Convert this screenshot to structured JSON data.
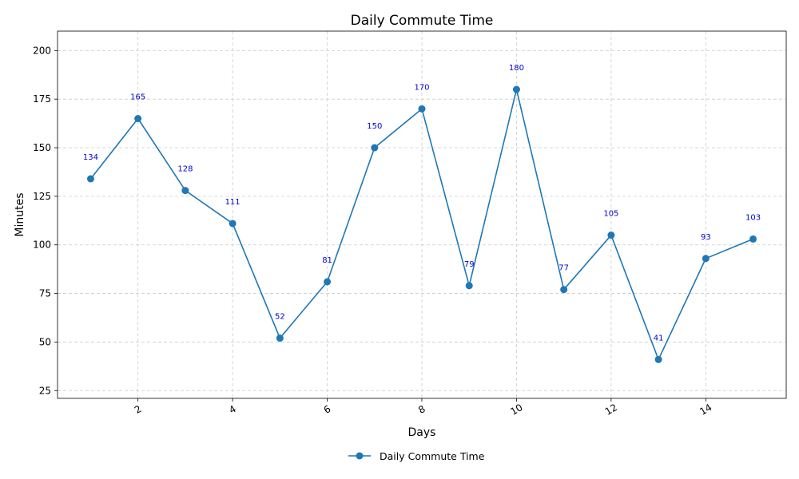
{
  "chart_data": {
    "type": "line",
    "title": "Daily Commute Time",
    "xlabel": "Days",
    "ylabel": "Minutes",
    "x": [
      1,
      2,
      3,
      4,
      5,
      6,
      7,
      8,
      9,
      10,
      11,
      12,
      13,
      14,
      15
    ],
    "series": [
      {
        "name": "Daily Commute Time",
        "values": [
          134,
          165,
          128,
          111,
          52,
          81,
          150,
          170,
          79,
          180,
          77,
          105,
          41,
          93,
          103
        ],
        "color": "#1f77b4",
        "marker": "circle"
      }
    ],
    "data_labels": [
      "134",
      "165",
      "128",
      "111",
      "52",
      "81",
      "150",
      "170",
      "79",
      "180",
      "77",
      "105",
      "41",
      "93",
      "103"
    ],
    "data_label_color": "#0000cc",
    "xlim": [
      0.3,
      15.7
    ],
    "ylim": [
      21,
      210
    ],
    "xticks": [
      2,
      4,
      6,
      8,
      10,
      12,
      14
    ],
    "xtick_labels": [
      "2",
      "4",
      "6",
      "8",
      "10",
      "12",
      "14"
    ],
    "xtick_rotation": -30,
    "yticks": [
      25,
      50,
      75,
      100,
      125,
      150,
      175,
      200
    ],
    "ytick_labels": [
      "25",
      "50",
      "75",
      "100",
      "125",
      "150",
      "175",
      "200"
    ],
    "grid": true,
    "legend": {
      "placement": "bottom-center",
      "entries": [
        "Daily Commute Time"
      ]
    }
  }
}
